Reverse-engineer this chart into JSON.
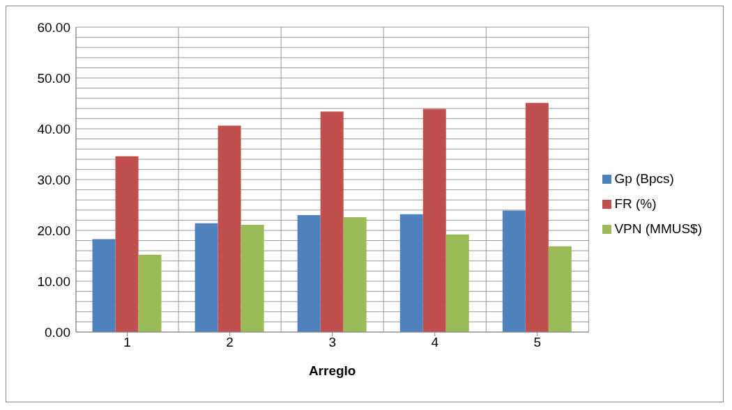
{
  "chart_data": {
    "type": "bar",
    "xlabel": "Arreglo",
    "categories": [
      "1",
      "2",
      "3",
      "4",
      "5"
    ],
    "series": [
      {
        "name": "Gp (Bpcs)",
        "color": "#4f81bd",
        "values": [
          18.3,
          21.4,
          23.0,
          23.2,
          23.9
        ]
      },
      {
        "name": "FR (%)",
        "color": "#c0504d",
        "values": [
          34.6,
          40.6,
          43.4,
          43.9,
          45.1
        ]
      },
      {
        "name": "VPN (MMUS$)",
        "color": "#9bbb59",
        "values": [
          15.2,
          21.1,
          22.6,
          19.2,
          16.9
        ]
      }
    ],
    "ylim": [
      0,
      60
    ],
    "yticks": [
      {
        "value": 0,
        "label": "0.00"
      },
      {
        "value": 2,
        "label": null
      },
      {
        "value": 4,
        "label": null
      },
      {
        "value": 6,
        "label": null
      },
      {
        "value": 8,
        "label": null
      },
      {
        "value": 10,
        "label": "10.00"
      },
      {
        "value": 12,
        "label": null
      },
      {
        "value": 14,
        "label": null
      },
      {
        "value": 16,
        "label": null
      },
      {
        "value": 18,
        "label": null
      },
      {
        "value": 20,
        "label": "20.00"
      },
      {
        "value": 22,
        "label": null
      },
      {
        "value": 24,
        "label": null
      },
      {
        "value": 26,
        "label": null
      },
      {
        "value": 28,
        "label": null
      },
      {
        "value": 30,
        "label": "30.00"
      },
      {
        "value": 32,
        "label": null
      },
      {
        "value": 34,
        "label": null
      },
      {
        "value": 36,
        "label": null
      },
      {
        "value": 38,
        "label": null
      },
      {
        "value": 40,
        "label": "40.00"
      },
      {
        "value": 42,
        "label": null
      },
      {
        "value": 44,
        "label": null
      },
      {
        "value": 46,
        "label": null
      },
      {
        "value": 48,
        "label": null
      },
      {
        "value": 50,
        "label": "50.00"
      },
      {
        "value": 52,
        "label": null
      },
      {
        "value": 54,
        "label": null
      },
      {
        "value": 56,
        "label": null
      },
      {
        "value": 58,
        "label": null
      },
      {
        "value": 60,
        "label": "60.00"
      }
    ],
    "grid": true,
    "legend": "right"
  }
}
